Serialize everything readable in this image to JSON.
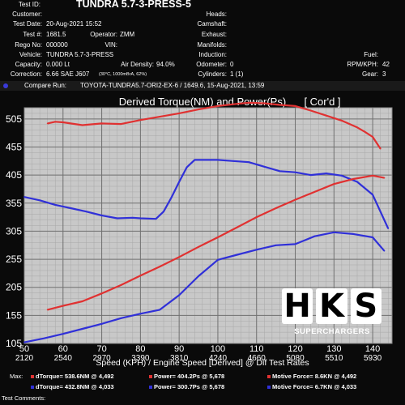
{
  "header": {
    "test_id_label": "Test ID:",
    "test_id": "TUNDRA 5.7-3-PRESS-5",
    "customer_label": "Customer:",
    "customer": "",
    "test_date_label": "Test Date:",
    "test_date": "20-Aug-2021 15:52",
    "test_no_label": "Test #:",
    "test_no": "1681.5",
    "operator_label": "Operator:",
    "operator": "ZMM",
    "rego_label": "Rego No:",
    "rego": "000000",
    "vin_label": "VIN:",
    "vin": "",
    "vehicle_label": "Vehicle:",
    "vehicle": "TUNDRA 5.7-3-PRESS",
    "capacity_label": "Capacity:",
    "capacity": "0.000 Lt",
    "air_density_label": "Air Density:",
    "air_density": "94.0%",
    "correction_label": "Correction:",
    "correction": "6.66 SAE J607",
    "correction_note": "(30°C, 1000mBrA, 62%)",
    "heads_label": "Heads:",
    "camshaft_label": "Camshaft:",
    "exhaust_label": "Exhaust:",
    "manifolds_label": "Manifolds:",
    "induction_label": "Induction:",
    "odometer_label": "Odometer:",
    "odometer": "0",
    "cylinders_label": "Cylinders:",
    "cylinders": "1 (1)",
    "fuel_label": "Fuel:",
    "rpm_kph_label": "RPM/KPH:",
    "rpm_kph": "42",
    "gear_label": "Gear:",
    "gear": "3"
  },
  "compare": {
    "label": "Compare Run:",
    "value": "TOYOTA-TUNDRA5.7-ORI2-EX-6 / 1649.6,  15-Aug-2021,  13:59"
  },
  "chart_data": {
    "type": "line",
    "title": "Derived Torque(NM) and Power(Ps)",
    "title_tag": "[ Cor'd ]",
    "xlabel": "Speed (KPH) / Engine Speed [Derived] @ Dif Test Rates",
    "xlim": [
      50,
      145
    ],
    "ylim": [
      105,
      525
    ],
    "x_ticks": [
      50,
      60,
      70,
      80,
      90,
      100,
      110,
      120,
      130,
      140
    ],
    "x_ticks_rpm": [
      "2120",
      "2540",
      "2970",
      "3390",
      "3810",
      "4240",
      "4660",
      "5080",
      "5510",
      "5930"
    ],
    "y_ticks": [
      105,
      155,
      205,
      255,
      305,
      355,
      405,
      455,
      505
    ],
    "grid": true,
    "series": [
      {
        "color": "#e03131",
        "x": [
          56,
          58,
          60,
          65,
          70,
          75,
          80,
          85,
          90,
          95,
          100,
          105,
          108,
          112,
          116,
          120,
          124,
          128,
          132,
          136,
          138,
          140,
          142
        ],
        "y": [
          497,
          500,
          499,
          494,
          497,
          496,
          503,
          509,
          515,
          522,
          528,
          532,
          534,
          533,
          530,
          528,
          520,
          511,
          502,
          490,
          482,
          473,
          452
        ]
      },
      {
        "color": "#3030d8",
        "x": [
          50,
          54,
          58,
          62,
          66,
          70,
          74,
          78,
          80,
          84,
          86,
          88,
          90,
          92,
          94,
          96,
          100,
          104,
          108,
          112,
          116,
          120,
          124,
          128,
          132,
          136,
          140,
          144
        ],
        "y": [
          366,
          360,
          352,
          346,
          340,
          333,
          328,
          329,
          328,
          327,
          340,
          365,
          393,
          419,
          432,
          432,
          432,
          430,
          428,
          420,
          412,
          410,
          405,
          408,
          404,
          393,
          370,
          310
        ]
      },
      {
        "color": "#e03131",
        "x": [
          56,
          60,
          65,
          70,
          75,
          80,
          85,
          90,
          95,
          100,
          105,
          110,
          115,
          120,
          125,
          130,
          135,
          140,
          143
        ],
        "y": [
          165,
          172,
          180,
          194,
          209,
          226,
          242,
          259,
          277,
          294,
          312,
          330,
          346,
          361,
          375,
          389,
          398,
          404,
          400
        ]
      },
      {
        "color": "#3030d8",
        "x": [
          50,
          55,
          60,
          65,
          70,
          75,
          80,
          85,
          90,
          95,
          100,
          105,
          110,
          115,
          120,
          125,
          130,
          135,
          140,
          143
        ],
        "y": [
          107,
          114,
          122,
          131,
          140,
          150,
          158,
          165,
          191,
          225,
          254,
          263,
          272,
          280,
          282,
          296,
          303,
          300,
          294,
          270
        ]
      }
    ]
  },
  "footer": {
    "max_label": "Max:",
    "row1": {
      "dtorque": "dTorque= 538.6NM @ 4,492",
      "power": "Power= 404.2Ps @ 5,678",
      "motive": "Motive Force= 8.6KN @ 4,492"
    },
    "row2": {
      "dtorque": "dTorque= 432.8NM @ 4,033",
      "power": "Power= 300.7Ps @ 5,678",
      "motive": "Motive Force= 6.7KN @ 4,033"
    },
    "comments_label": "Test Comments:",
    "colors": {
      "current": "#e03131",
      "compare": "#3030d8"
    }
  },
  "brand": {
    "letters": [
      "H",
      "K",
      "S"
    ],
    "tagline": "SUPERCHARGERS"
  }
}
